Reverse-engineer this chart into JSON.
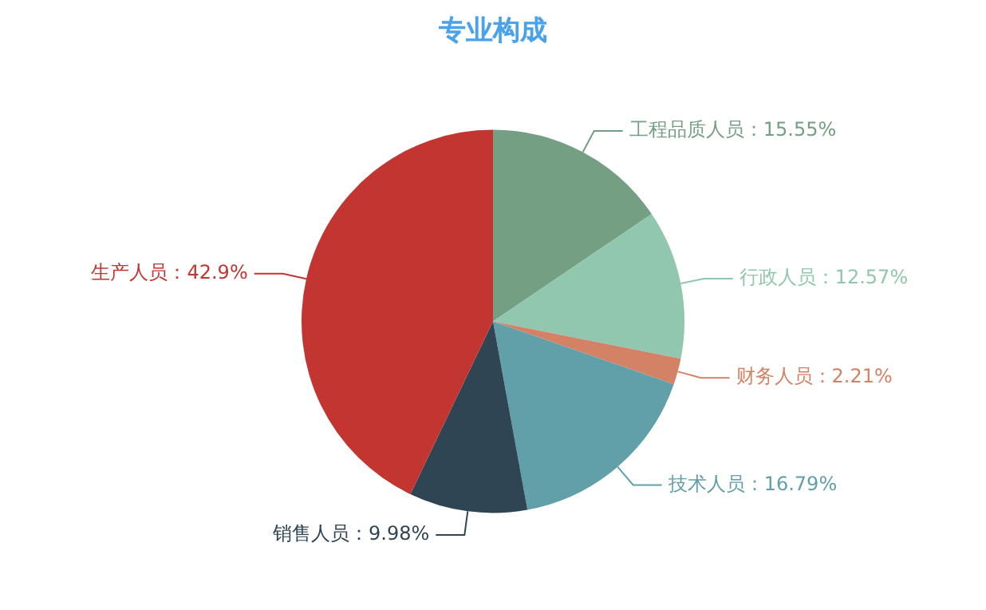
{
  "chart_data": {
    "type": "pie",
    "title": "专业构成",
    "categories": [
      "工程品质人员",
      "行政人员",
      "财务人员",
      "技术人员",
      "销售人员",
      "生产人员"
    ],
    "values": [
      15.55,
      12.57,
      2.21,
      16.79,
      9.98,
      42.9
    ],
    "value_labels": [
      "15.55%",
      "12.57%",
      "2.21%",
      "16.79%",
      "9.98%",
      "42.9%"
    ],
    "colors": [
      "#749f83",
      "#91c7ae",
      "#d48265",
      "#61a0a8",
      "#2f4554",
      "#c23531"
    ],
    "legend": false
  }
}
